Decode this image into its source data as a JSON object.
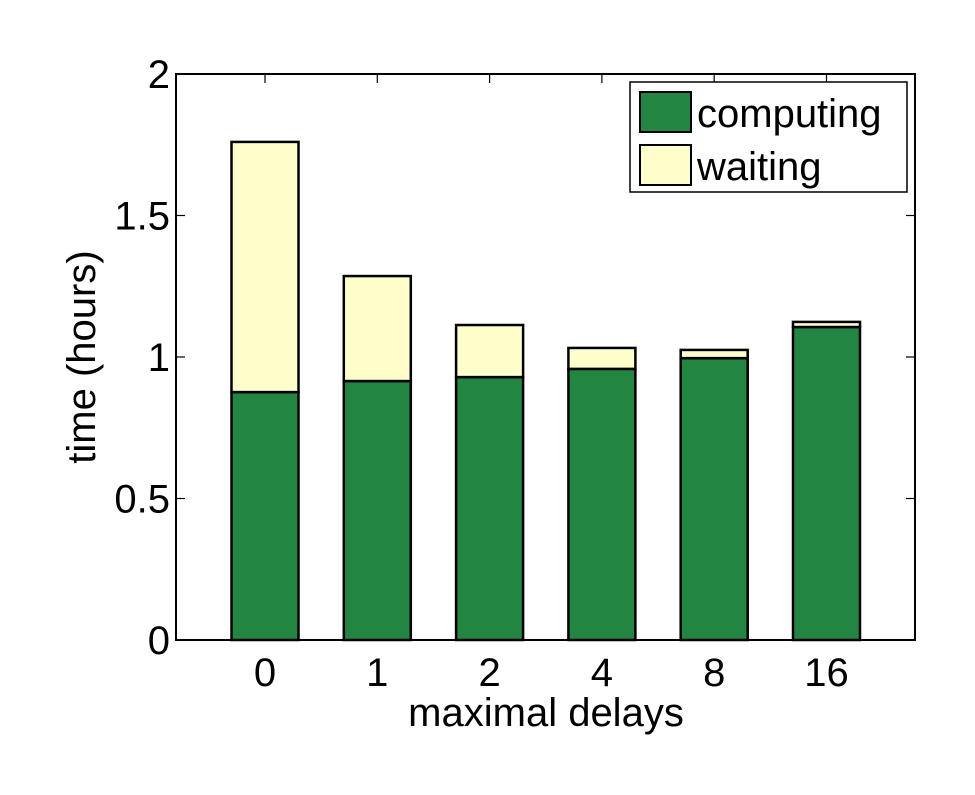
{
  "chart_data": {
    "type": "bar",
    "stacked": true,
    "title": "",
    "xlabel": "maximal delays",
    "ylabel": "time (hours)",
    "categories": [
      "0",
      "1",
      "2",
      "4",
      "8",
      "16"
    ],
    "series": [
      {
        "name": "computing",
        "color": "#228542",
        "values": [
          0.876,
          0.915,
          0.929,
          0.958,
          0.996,
          1.106
        ]
      },
      {
        "name": "waiting",
        "color": "#FFFFCC",
        "values": [
          0.884,
          0.371,
          0.184,
          0.074,
          0.029,
          0.018
        ]
      }
    ],
    "totals": [
      1.76,
      1.286,
      1.113,
      1.032,
      1.025,
      1.124
    ],
    "ylim": [
      0,
      2
    ],
    "yticks": [
      0,
      0.5,
      1,
      1.5,
      2
    ],
    "ytick_labels": [
      "0",
      "0.5",
      "1",
      "1.5",
      "2"
    ],
    "grid": false,
    "legend_position": "upper right"
  },
  "legend": {
    "items": [
      {
        "label": "computing",
        "color": "#228542"
      },
      {
        "label": "waiting",
        "color": "#FFFFCC"
      }
    ]
  }
}
